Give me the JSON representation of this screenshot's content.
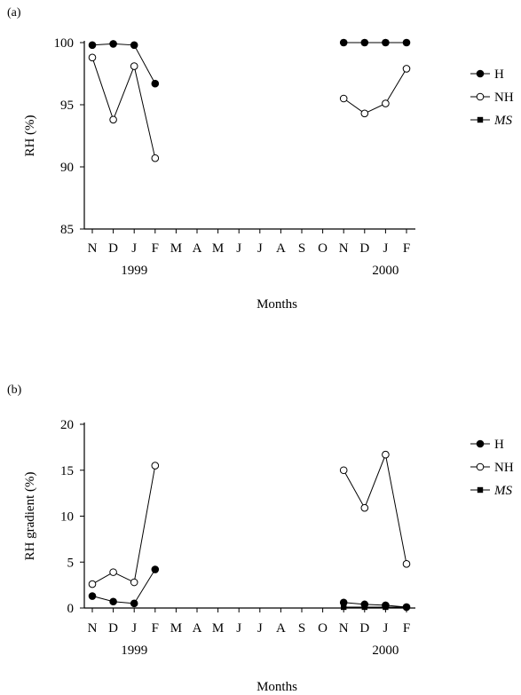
{
  "chart_data": [
    {
      "panel_label": "(a)",
      "type": "line",
      "ylabel": "RH (%)",
      "xlabel": "Months",
      "ylim": [
        85,
        100
      ],
      "yticks": [
        85,
        90,
        95,
        100
      ],
      "x_categories": [
        "N",
        "D",
        "J",
        "F",
        "M",
        "A",
        "M",
        "J",
        "J",
        "A",
        "S",
        "O",
        "N",
        "D",
        "J",
        "F"
      ],
      "year_labels": [
        {
          "label": "1999",
          "category_index": 2
        },
        {
          "label": "2000",
          "category_index": 14
        }
      ],
      "legend_position": "right",
      "series": [
        {
          "name": "H",
          "marker": "filled-circle",
          "segments": [
            {
              "x_index": [
                0,
                1,
                2,
                3
              ],
              "values": [
                99.8,
                99.9,
                99.8,
                96.7
              ]
            },
            {
              "x_index": [
                12,
                13,
                14,
                15
              ],
              "values": [
                100.0,
                100.0,
                100.0,
                100.0
              ]
            }
          ]
        },
        {
          "name": "NH",
          "marker": "open-circle",
          "segments": [
            {
              "x_index": [
                0,
                1,
                2,
                3
              ],
              "values": [
                98.8,
                93.8,
                98.1,
                90.7
              ]
            },
            {
              "x_index": [
                12,
                13,
                14,
                15
              ],
              "values": [
                95.5,
                94.3,
                95.1,
                97.9
              ]
            }
          ]
        },
        {
          "name": "MS",
          "italic": true,
          "marker": "filled-square",
          "segments": [
            {
              "x_index": [
                12,
                13,
                14,
                15
              ],
              "values": [
                100.0,
                100.0,
                100.0,
                100.0
              ]
            }
          ]
        }
      ]
    },
    {
      "panel_label": "(b)",
      "type": "line",
      "ylabel": "RH gradient (%)",
      "xlabel": "Months",
      "ylim": [
        0,
        20
      ],
      "yticks": [
        0,
        5,
        10,
        15,
        20
      ],
      "x_categories": [
        "N",
        "D",
        "J",
        "F",
        "M",
        "A",
        "M",
        "J",
        "J",
        "A",
        "S",
        "O",
        "N",
        "D",
        "J",
        "F"
      ],
      "year_labels": [
        {
          "label": "1999",
          "category_index": 2
        },
        {
          "label": "2000",
          "category_index": 14
        }
      ],
      "legend_position": "right",
      "series": [
        {
          "name": "H",
          "marker": "filled-circle",
          "segments": [
            {
              "x_index": [
                0,
                1,
                2,
                3
              ],
              "values": [
                1.3,
                0.7,
                0.5,
                4.2
              ]
            },
            {
              "x_index": [
                12,
                13,
                14,
                15
              ],
              "values": [
                0.6,
                0.4,
                0.3,
                0.1
              ]
            }
          ]
        },
        {
          "name": "NH",
          "marker": "open-circle",
          "segments": [
            {
              "x_index": [
                0,
                1,
                2,
                3
              ],
              "values": [
                2.6,
                3.9,
                2.8,
                15.5
              ]
            },
            {
              "x_index": [
                12,
                13,
                14,
                15
              ],
              "values": [
                15.0,
                10.9,
                16.7,
                4.8
              ]
            }
          ]
        },
        {
          "name": "MS",
          "italic": true,
          "marker": "filled-square",
          "segments": [
            {
              "x_index": [
                12,
                13,
                14,
                15
              ],
              "values": [
                0.1,
                0.1,
                0.1,
                0.1
              ]
            }
          ]
        }
      ]
    }
  ]
}
